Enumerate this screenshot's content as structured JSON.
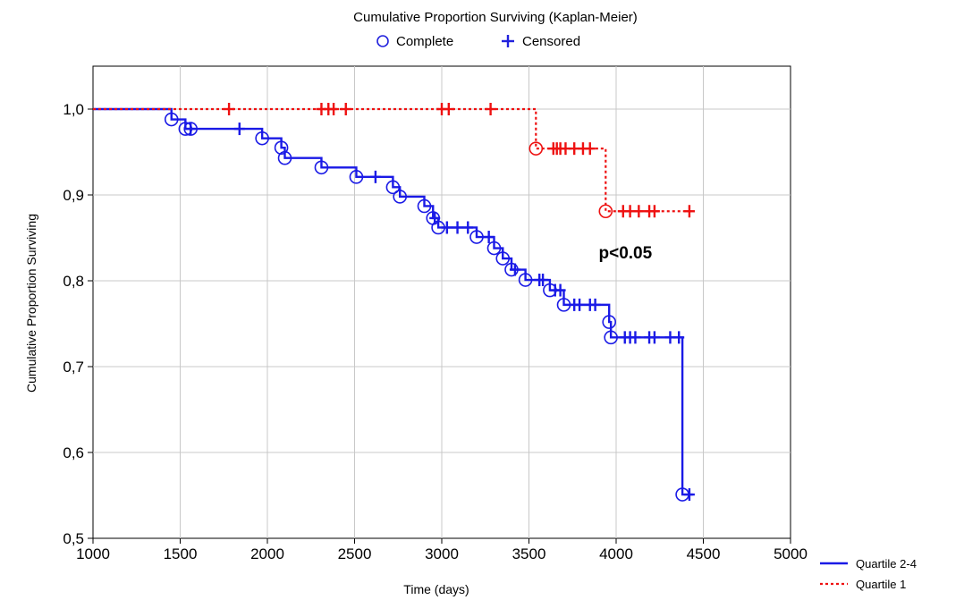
{
  "chart_data": {
    "type": "line",
    "title": "Cumulative Proportion Surviving (Kaplan-Meier)",
    "xlabel": "Time (days)",
    "ylabel": "Cumulative Proportion Surviving",
    "xlim": [
      1000,
      5000
    ],
    "ylim": [
      0.5,
      1.05
    ],
    "xticks": [
      1000,
      1500,
      2000,
      2500,
      3000,
      3500,
      4000,
      4500,
      5000
    ],
    "xtick_labels": [
      "1000",
      "1500",
      "2000",
      "2500",
      "3000",
      "3500",
      "4000",
      "4500",
      "5000"
    ],
    "yticks": [
      0.5,
      0.6,
      0.7,
      0.8,
      0.9,
      1.0
    ],
    "ytick_labels": [
      "0,5",
      "0,6",
      "0,7",
      "0,8",
      "0,9",
      "1,0"
    ],
    "grid": true,
    "marker_legend": {
      "position": "top-center",
      "complete_label": "Complete",
      "censored_label": "Censored",
      "color": "#2222dd"
    },
    "annotation": {
      "text": "p<0.05",
      "x": 3900,
      "y": 0.826
    },
    "series_legend_position": "bottom-right",
    "series": [
      {
        "name": "Quartile 2-4",
        "color": "#1a1ae6",
        "line_style": "solid",
        "steps": [
          [
            1000,
            1.0
          ],
          [
            1450,
            0.988
          ],
          [
            1530,
            0.977
          ],
          [
            1970,
            0.966
          ],
          [
            2080,
            0.955
          ],
          [
            2100,
            0.943
          ],
          [
            2310,
            0.932
          ],
          [
            2510,
            0.921
          ],
          [
            2720,
            0.909
          ],
          [
            2760,
            0.898
          ],
          [
            2900,
            0.887
          ],
          [
            2950,
            0.873
          ],
          [
            2980,
            0.862
          ],
          [
            3200,
            0.851
          ],
          [
            3300,
            0.838
          ],
          [
            3350,
            0.826
          ],
          [
            3400,
            0.813
          ],
          [
            3480,
            0.801
          ],
          [
            3620,
            0.789
          ],
          [
            3700,
            0.772
          ],
          [
            3960,
            0.752
          ],
          [
            3970,
            0.734
          ],
          [
            4380,
            0.551
          ]
        ],
        "end_x": 4440,
        "complete": [
          [
            1450,
            0.988
          ],
          [
            1530,
            0.977
          ],
          [
            1560,
            0.977
          ],
          [
            1970,
            0.966
          ],
          [
            2080,
            0.955
          ],
          [
            2100,
            0.943
          ],
          [
            2310,
            0.932
          ],
          [
            2510,
            0.921
          ],
          [
            2720,
            0.909
          ],
          [
            2760,
            0.898
          ],
          [
            2900,
            0.887
          ],
          [
            2950,
            0.873
          ],
          [
            2980,
            0.862
          ],
          [
            3200,
            0.851
          ],
          [
            3300,
            0.838
          ],
          [
            3350,
            0.826
          ],
          [
            3400,
            0.813
          ],
          [
            3480,
            0.801
          ],
          [
            3620,
            0.789
          ],
          [
            3700,
            0.772
          ],
          [
            3960,
            0.752
          ],
          [
            3970,
            0.734
          ],
          [
            4380,
            0.551
          ]
        ],
        "censored": [
          [
            1560,
            0.977
          ],
          [
            1840,
            0.977
          ],
          [
            2620,
            0.921
          ],
          [
            2960,
            0.873
          ],
          [
            3030,
            0.862
          ],
          [
            3090,
            0.862
          ],
          [
            3150,
            0.862
          ],
          [
            3270,
            0.851
          ],
          [
            3420,
            0.813
          ],
          [
            3560,
            0.801
          ],
          [
            3580,
            0.801
          ],
          [
            3650,
            0.789
          ],
          [
            3680,
            0.789
          ],
          [
            3760,
            0.772
          ],
          [
            3790,
            0.772
          ],
          [
            3850,
            0.772
          ],
          [
            3880,
            0.772
          ],
          [
            4050,
            0.734
          ],
          [
            4080,
            0.734
          ],
          [
            4110,
            0.734
          ],
          [
            4190,
            0.734
          ],
          [
            4220,
            0.734
          ],
          [
            4310,
            0.734
          ],
          [
            4360,
            0.734
          ],
          [
            4420,
            0.551
          ]
        ]
      },
      {
        "name": "Quartile 1",
        "color": "#ee1111",
        "line_style": "dotted",
        "steps": [
          [
            1000,
            1.0
          ],
          [
            3540,
            0.954
          ],
          [
            3940,
            0.881
          ]
        ],
        "end_x": 4450,
        "complete": [
          [
            3540,
            0.954
          ],
          [
            3940,
            0.881
          ]
        ],
        "censored": [
          [
            1780,
            1.0
          ],
          [
            2310,
            1.0
          ],
          [
            2350,
            1.0
          ],
          [
            2380,
            1.0
          ],
          [
            2450,
            1.0
          ],
          [
            3000,
            1.0
          ],
          [
            3040,
            1.0
          ],
          [
            3280,
            1.0
          ],
          [
            3640,
            0.954
          ],
          [
            3660,
            0.954
          ],
          [
            3680,
            0.954
          ],
          [
            3710,
            0.954
          ],
          [
            3760,
            0.954
          ],
          [
            3810,
            0.954
          ],
          [
            3850,
            0.954
          ],
          [
            4040,
            0.881
          ],
          [
            4080,
            0.881
          ],
          [
            4130,
            0.881
          ],
          [
            4190,
            0.881
          ],
          [
            4220,
            0.881
          ],
          [
            4420,
            0.881
          ]
        ]
      }
    ]
  }
}
